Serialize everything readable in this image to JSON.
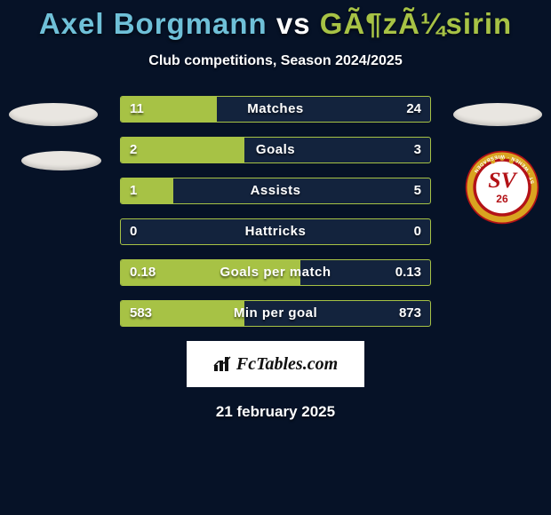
{
  "title": {
    "player1": "Axel Borgmann",
    "vs": "vs",
    "player2": "GÃ¶zÃ¼sirin",
    "color1": "#6fc0d8",
    "color_vs": "#ffffff",
    "color2": "#a7c245"
  },
  "subtitle": "Club competitions, Season 2024/2025",
  "bars": {
    "fill_color": "#a7c245",
    "border_color": "#a7c245",
    "track_color": "#13233d",
    "rows": [
      {
        "label": "Matches",
        "left": "11",
        "right": "24",
        "left_pct": 31,
        "right_pct": 0
      },
      {
        "label": "Goals",
        "left": "2",
        "right": "3",
        "left_pct": 40,
        "right_pct": 0
      },
      {
        "label": "Assists",
        "left": "1",
        "right": "5",
        "left_pct": 17,
        "right_pct": 0
      },
      {
        "label": "Hattricks",
        "left": "0",
        "right": "0",
        "left_pct": 0,
        "right_pct": 0
      },
      {
        "label": "Goals per match",
        "left": "0.18",
        "right": "0.13",
        "left_pct": 58,
        "right_pct": 0
      },
      {
        "label": "Min per goal",
        "left": "583",
        "right": "873",
        "left_pct": 40,
        "right_pct": 0
      }
    ]
  },
  "footer_brand": "FcTables.com",
  "date": "21 february 2025",
  "crest": {
    "outer": "#b31217",
    "gold": "#d9a420",
    "inner": "#ffffff",
    "text": "#b31217",
    "ribbon_text": "ST WEHEN WIESBADEN"
  },
  "placeholder_ellipse_color": "#e9e6e1",
  "background_color": "#061227"
}
